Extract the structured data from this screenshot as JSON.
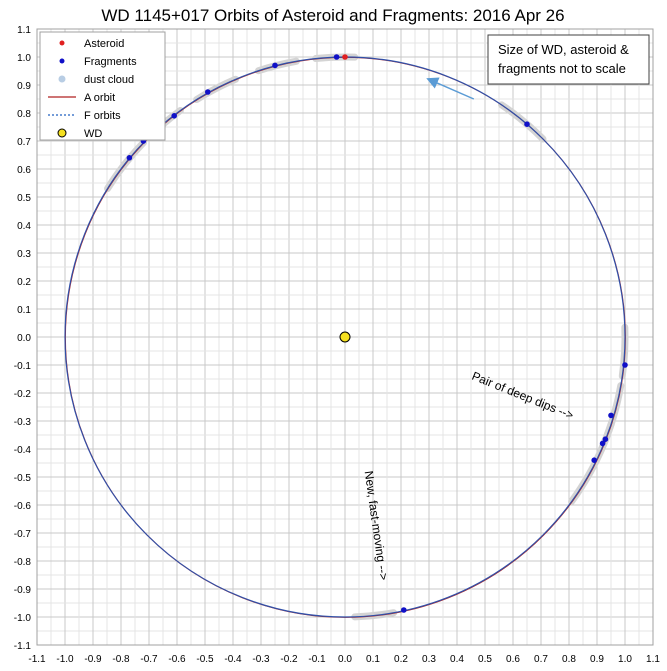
{
  "chart_data": {
    "type": "scatter",
    "title": "WD 1145+017 Orbits of Asteroid and Fragments: 2016 Apr 26",
    "xlim": [
      -1.1,
      1.1
    ],
    "ylim": [
      -1.1,
      1.1
    ],
    "x_ticks": [
      "-1.1",
      "-1.0",
      "-0.9",
      "-0.8",
      "-0.7",
      "-0.6",
      "-0.5",
      "-0.4",
      "-0.3",
      "-0.2",
      "-0.1",
      "0.0",
      "0.1",
      "0.2",
      "0.3",
      "0.4",
      "0.5",
      "0.6",
      "0.7",
      "0.8",
      "0.9",
      "1.0",
      "1.1"
    ],
    "y_ticks": [
      "1.1",
      "1.0",
      "0.9",
      "0.8",
      "0.7",
      "0.6",
      "0.5",
      "0.4",
      "0.3",
      "0.2",
      "0.1",
      "0.0",
      "-0.1",
      "-0.2",
      "-0.3",
      "-0.4",
      "-0.5",
      "-0.6",
      "-0.7",
      "-0.8",
      "-0.9",
      "-1.0",
      "-1.1"
    ],
    "grid": true,
    "legend_position": "top-left",
    "legend": [
      {
        "label": "Asteroid",
        "marker": "dot",
        "color": "#e02020"
      },
      {
        "label": "Fragments",
        "marker": "dot",
        "color": "#1010c8"
      },
      {
        "label": "dust cloud",
        "marker": "dot",
        "color": "#b8cde4"
      },
      {
        "label": "A orbit",
        "marker": "line",
        "color": "#b02020"
      },
      {
        "label": "F orbits",
        "marker": "dash",
        "color": "#2060c0"
      },
      {
        "label": "WD",
        "marker": "dot",
        "color": "#f5e020"
      }
    ],
    "note": [
      "Size of WD, asteroid &",
      "fragments not to scale"
    ],
    "annotations": [
      {
        "text": "Pair of deep dips -->",
        "x": 0.45,
        "y": -0.15,
        "angle": 22
      },
      {
        "text": "New, fast-moving -->",
        "x": 0.07,
        "y": -0.48,
        "angle": 82
      }
    ],
    "orbit_radius": 1.0,
    "wd": {
      "x": 0.0,
      "y": 0.0
    },
    "asteroid": [
      {
        "x": 0.0,
        "y": 1.0
      }
    ],
    "fragments": [
      {
        "x": -0.03,
        "y": 1.0
      },
      {
        "x": -0.25,
        "y": 0.97
      },
      {
        "x": -0.49,
        "y": 0.875
      },
      {
        "x": -0.61,
        "y": 0.79
      },
      {
        "x": -0.72,
        "y": 0.7
      },
      {
        "x": -0.77,
        "y": 0.64
      },
      {
        "x": 0.65,
        "y": 0.76
      },
      {
        "x": 1.0,
        "y": -0.1
      },
      {
        "x": 0.95,
        "y": -0.28
      },
      {
        "x": 0.93,
        "y": -0.365
      },
      {
        "x": 0.92,
        "y": -0.38
      },
      {
        "x": 0.89,
        "y": -0.44
      },
      {
        "x": 0.21,
        "y": -0.975
      }
    ],
    "dust_arcs_deg": [
      [
        88,
        96
      ],
      [
        100,
        108
      ],
      [
        113,
        122
      ],
      [
        126,
        134
      ],
      [
        136,
        148
      ],
      [
        45,
        56
      ],
      [
        -8,
        2
      ],
      [
        -36,
        -10
      ],
      [
        -24,
        -18
      ],
      [
        -88,
        -80
      ]
    ],
    "arrow": {
      "from": {
        "x": 0.46,
        "y": 0.85
      },
      "to": {
        "x": 0.3,
        "y": 0.92
      }
    }
  }
}
